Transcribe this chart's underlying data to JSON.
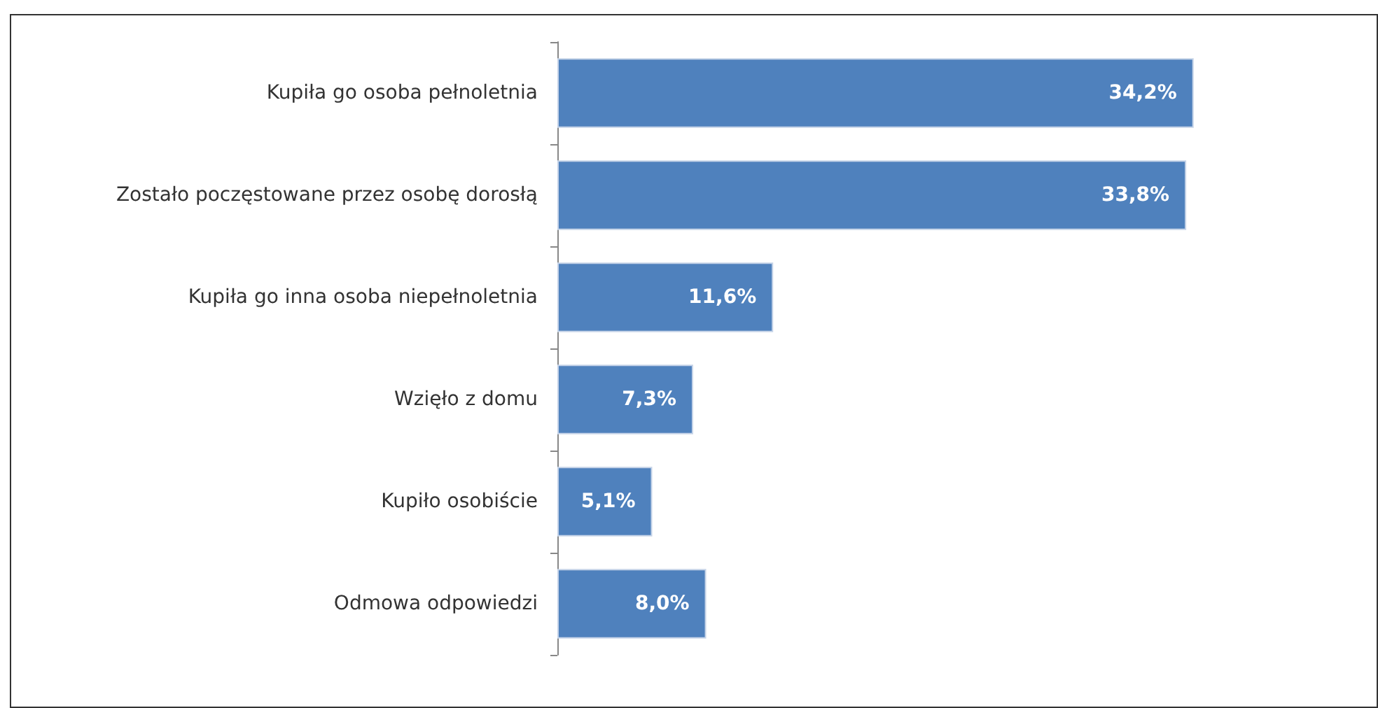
{
  "chart_data": {
    "type": "bar",
    "orientation": "horizontal",
    "categories": [
      "Kupiła go osoba pełnoletnia",
      "Zostało poczęstowane przez osobę dorosłą",
      "Kupiła go inna osoba niepełnoletnia",
      "Wzięło z domu",
      "Kupiło osobiście",
      "Odmowa odpowiedzi"
    ],
    "values": [
      34.2,
      33.8,
      11.6,
      7.3,
      5.1,
      8.0
    ],
    "value_labels": [
      "34,2%",
      "33,8%",
      "11,6%",
      "7,3%",
      "5,1%",
      "8,0%"
    ],
    "color": "#4f81bd"
  }
}
